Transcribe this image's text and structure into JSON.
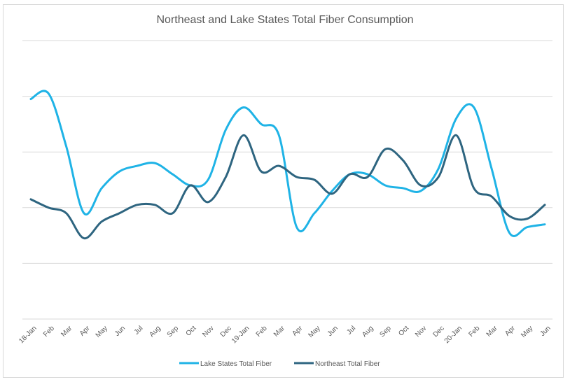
{
  "chart_data": {
    "type": "line",
    "title": "Northeast and Lake States Total Fiber Consumption",
    "xlabel": "",
    "ylabel": "",
    "ylim": [
      0,
      5
    ],
    "yaxis_labels_shown": false,
    "grid": true,
    "legend_position": "bottom",
    "categories": [
      "18-Jan",
      "Feb",
      "Mar",
      "Apr",
      "May",
      "Jun",
      "Jul",
      "Aug",
      "Sep",
      "Oct",
      "Nov",
      "Dec",
      "19-Jan",
      "Feb",
      "Mar",
      "Apr",
      "May",
      "Jun",
      "Jul",
      "Aug",
      "Sep",
      "Oct",
      "Nov",
      "Dec",
      "20-Jan",
      "Feb",
      "Mar",
      "Apr",
      "May",
      "Jun"
    ],
    "series": [
      {
        "name": "Lake States Total Fiber",
        "color": "#1fb3e6",
        "values": [
          3.95,
          4.05,
          3.1,
          1.9,
          2.35,
          2.65,
          2.75,
          2.8,
          2.6,
          2.4,
          2.5,
          3.4,
          3.8,
          3.5,
          3.3,
          1.65,
          1.9,
          2.3,
          2.6,
          2.6,
          2.4,
          2.35,
          2.3,
          2.7,
          3.6,
          3.8,
          2.7,
          1.55,
          1.65,
          1.7
        ]
      },
      {
        "name": "Northeast Total Fiber",
        "color": "#2e6580",
        "values": [
          2.15,
          2.0,
          1.9,
          1.45,
          1.75,
          1.9,
          2.05,
          2.05,
          1.9,
          2.4,
          2.1,
          2.55,
          3.3,
          2.65,
          2.75,
          2.55,
          2.5,
          2.25,
          2.6,
          2.55,
          3.05,
          2.85,
          2.4,
          2.55,
          3.3,
          2.35,
          2.2,
          1.85,
          1.8,
          2.05
        ]
      }
    ]
  }
}
